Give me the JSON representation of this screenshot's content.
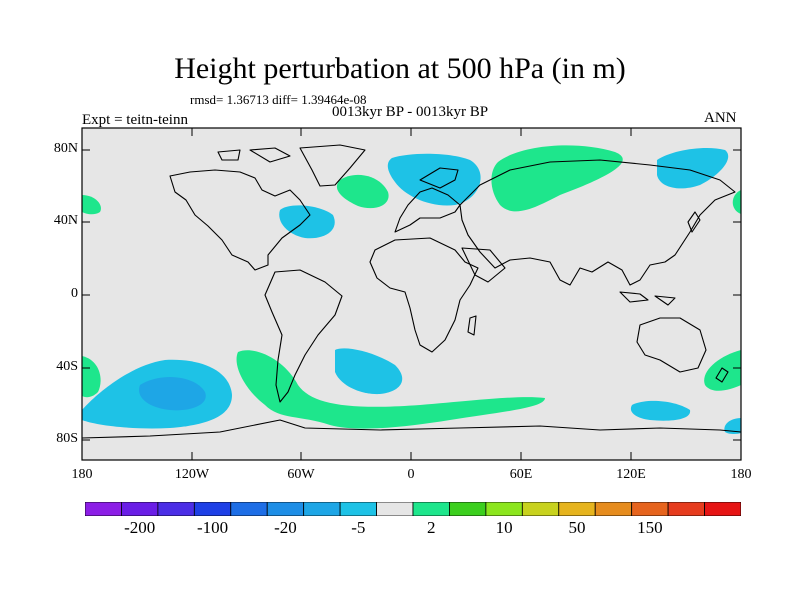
{
  "title": "Height perturbation at 500 hPa (in m)",
  "stats": "rmsd= 1.36713 diff= 1.39464e-08",
  "period": "0013kyr BP - 0013kyr BP",
  "expt": "Expt = teitn-teinn",
  "season": "ANN",
  "lat_labels": [
    "80N",
    "40N",
    "0",
    "40S",
    "80S"
  ],
  "lon_labels": [
    "180",
    "120W",
    "60W",
    "0",
    "60E",
    "120E",
    "180"
  ],
  "colorbar": {
    "colors": [
      "#8c1ee6",
      "#6a1ee6",
      "#4b2ee6",
      "#1e40e6",
      "#1e6ee6",
      "#1e8ee6",
      "#1ea6e6",
      "#1ec2e6",
      "#e6e6e6",
      "#1ee68c",
      "#3ccf1e",
      "#8ce61e",
      "#c8d21e",
      "#e6b41e",
      "#e68c1e",
      "#e6641e",
      "#e63c1e",
      "#e61414"
    ],
    "labels": [
      "-200",
      "-100",
      "-20",
      "-5",
      "2",
      "10",
      "50",
      "150"
    ]
  },
  "colors": {
    "ocean_bg": "#e6e6e6",
    "positive": "#1ee68c",
    "negative": "#1ec2e6",
    "negative_strong": "#1ea6e6"
  }
}
